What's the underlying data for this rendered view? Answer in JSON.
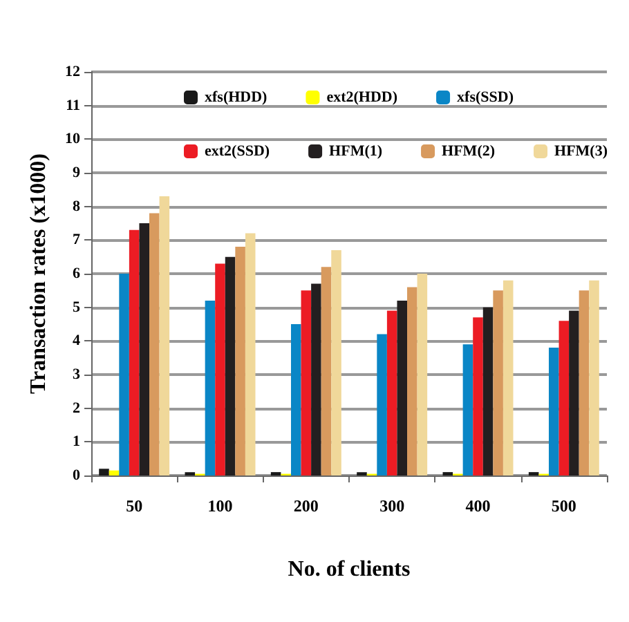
{
  "chart_data": {
    "type": "bar",
    "xlabel": "No. of clients",
    "ylabel": "Transaction rates (x1000)",
    "categories": [
      "50",
      "100",
      "200",
      "300",
      "400",
      "500"
    ],
    "series": [
      {
        "name": "xfs(HDD)",
        "color": "#1a1a1a",
        "values": [
          0.2,
          0.1,
          0.1,
          0.1,
          0.1,
          0.1
        ]
      },
      {
        "name": "ext2(HDD)",
        "color": "#ffff00",
        "values": [
          0.15,
          0.05,
          0.05,
          0.05,
          0.05,
          0.05
        ]
      },
      {
        "name": "xfs(SSD)",
        "color": "#0a86c6",
        "values": [
          6.0,
          5.2,
          4.5,
          4.2,
          3.9,
          3.8
        ]
      },
      {
        "name": "ext2(SSD)",
        "color": "#ec1c24",
        "values": [
          7.3,
          6.3,
          5.5,
          4.9,
          4.7,
          4.6
        ]
      },
      {
        "name": "HFM(1)",
        "color": "#231f20",
        "values": [
          7.5,
          6.5,
          5.7,
          5.2,
          5.0,
          4.9
        ]
      },
      {
        "name": "HFM(2)",
        "color": "#d89a5e",
        "values": [
          7.8,
          6.8,
          6.2,
          5.6,
          5.5,
          5.5
        ]
      },
      {
        "name": "HFM(3)",
        "color": "#f0d89a",
        "values": [
          8.3,
          7.2,
          6.7,
          6.0,
          5.8,
          5.8
        ]
      }
    ],
    "ylim": [
      0,
      12
    ],
    "yticks": [
      0,
      1,
      2,
      3,
      4,
      5,
      6,
      7,
      8,
      9,
      10,
      11,
      12
    ],
    "grid": "y",
    "legend": "top"
  }
}
